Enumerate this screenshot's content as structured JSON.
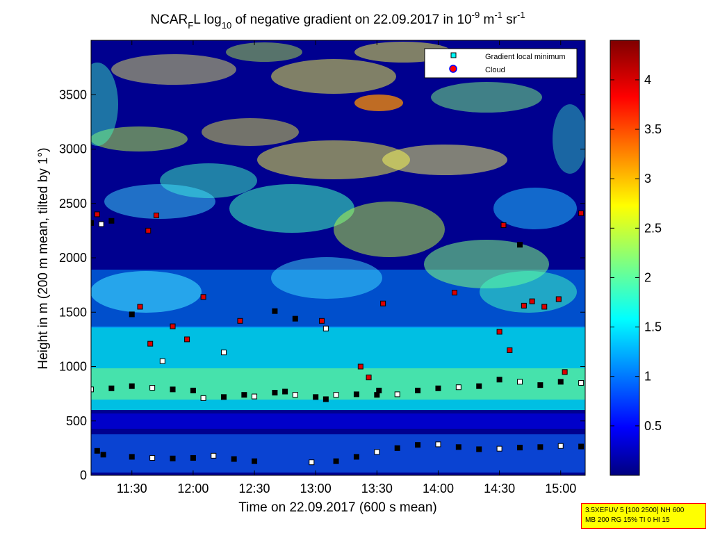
{
  "chart_data": {
    "type": "heatmap",
    "title": {
      "prefix": "NCAR",
      "sub1": "F",
      "mid1": "L log",
      "sub2": "10",
      "mid2": " of negative gradient on 22.09.2017 in 10",
      "sup1": "-9",
      "mid3": " m",
      "sup2": "-1",
      "mid4": " sr",
      "sup3": "-1"
    },
    "xlabel": "Time on 22.09.2017 (600 s mean)",
    "ylabel": "Height in m (200 m mean, tilted by 1°)",
    "xlim_minutes": [
      670,
      912
    ],
    "ylim": [
      0,
      4000
    ],
    "x_ticks": [
      {
        "label": "11:30",
        "minutes": 690
      },
      {
        "label": "12:00",
        "minutes": 720
      },
      {
        "label": "12:30",
        "minutes": 750
      },
      {
        "label": "13:00",
        "minutes": 780
      },
      {
        "label": "13:30",
        "minutes": 810
      },
      {
        "label": "14:00",
        "minutes": 840
      },
      {
        "label": "14:30",
        "minutes": 870
      },
      {
        "label": "15:00",
        "minutes": 900
      }
    ],
    "y_ticks": [
      "0",
      "500",
      "1000",
      "1500",
      "2000",
      "2500",
      "3000",
      "3500"
    ],
    "colorbar": {
      "range": [
        0,
        4.4
      ],
      "ticks": [
        "0.5",
        "1",
        "1.5",
        "2",
        "2.5",
        "3",
        "3.5",
        "4"
      ]
    },
    "legend": {
      "position": "top-right",
      "entries": [
        "Gradient local minimum",
        "Cloud"
      ]
    },
    "series": [
      {
        "name": "Gradient local minimum",
        "points_time_height": [
          [
            670,
            790
          ],
          [
            680,
            800
          ],
          [
            690,
            820
          ],
          [
            700,
            805
          ],
          [
            710,
            790
          ],
          [
            720,
            780
          ],
          [
            725,
            710
          ],
          [
            735,
            720
          ],
          [
            745,
            740
          ],
          [
            750,
            725
          ],
          [
            760,
            760
          ],
          [
            765,
            770
          ],
          [
            770,
            740
          ],
          [
            780,
            720
          ],
          [
            785,
            700
          ],
          [
            790,
            740
          ],
          [
            800,
            745
          ],
          [
            810,
            740
          ],
          [
            820,
            745
          ],
          [
            830,
            780
          ],
          [
            840,
            800
          ],
          [
            850,
            810
          ],
          [
            860,
            820
          ],
          [
            870,
            880
          ],
          [
            880,
            860
          ],
          [
            890,
            830
          ],
          [
            900,
            860
          ],
          [
            910,
            850
          ],
          [
            676,
            190
          ],
          [
            690,
            170
          ],
          [
            700,
            160
          ],
          [
            710,
            155
          ],
          [
            720,
            160
          ],
          [
            730,
            180
          ],
          [
            740,
            150
          ],
          [
            750,
            130
          ],
          [
            778,
            120
          ],
          [
            790,
            130
          ],
          [
            800,
            170
          ],
          [
            810,
            215
          ],
          [
            820,
            250
          ],
          [
            830,
            280
          ],
          [
            840,
            285
          ],
          [
            850,
            260
          ],
          [
            860,
            240
          ],
          [
            870,
            245
          ],
          [
            880,
            255
          ],
          [
            890,
            260
          ],
          [
            900,
            270
          ],
          [
            910,
            265
          ],
          [
            673,
            225
          ],
          [
            735,
            1130
          ],
          [
            760,
            1510
          ],
          [
            770,
            1440
          ],
          [
            785,
            1350
          ],
          [
            811,
            780
          ],
          [
            670,
            2320
          ],
          [
            675,
            2310
          ],
          [
            680,
            2340
          ],
          [
            690,
            1480
          ],
          [
            705,
            1050
          ],
          [
            880,
            2120
          ]
        ]
      },
      {
        "name": "Cloud",
        "points_time_height": [
          [
            673,
            2400
          ],
          [
            698,
            2250
          ],
          [
            702,
            2390
          ],
          [
            694,
            1550
          ],
          [
            699,
            1210
          ],
          [
            710,
            1370
          ],
          [
            717,
            1250
          ],
          [
            725,
            1640
          ],
          [
            743,
            1420
          ],
          [
            783,
            1420
          ],
          [
            802,
            1000
          ],
          [
            806,
            900
          ],
          [
            813,
            1580
          ],
          [
            848,
            1680
          ],
          [
            870,
            1320
          ],
          [
            872,
            2300
          ],
          [
            882,
            1560
          ],
          [
            886,
            1600
          ],
          [
            892,
            1550
          ],
          [
            899,
            1620
          ],
          [
            902,
            950
          ],
          [
            910,
            2410
          ],
          [
            875,
            1150
          ]
        ]
      }
    ]
  },
  "info_box": {
    "line1": "3.5XEFUV 5 [100 2500] NH 600",
    "line2": "MB 200 RG 15% TI 0 HI 15"
  }
}
